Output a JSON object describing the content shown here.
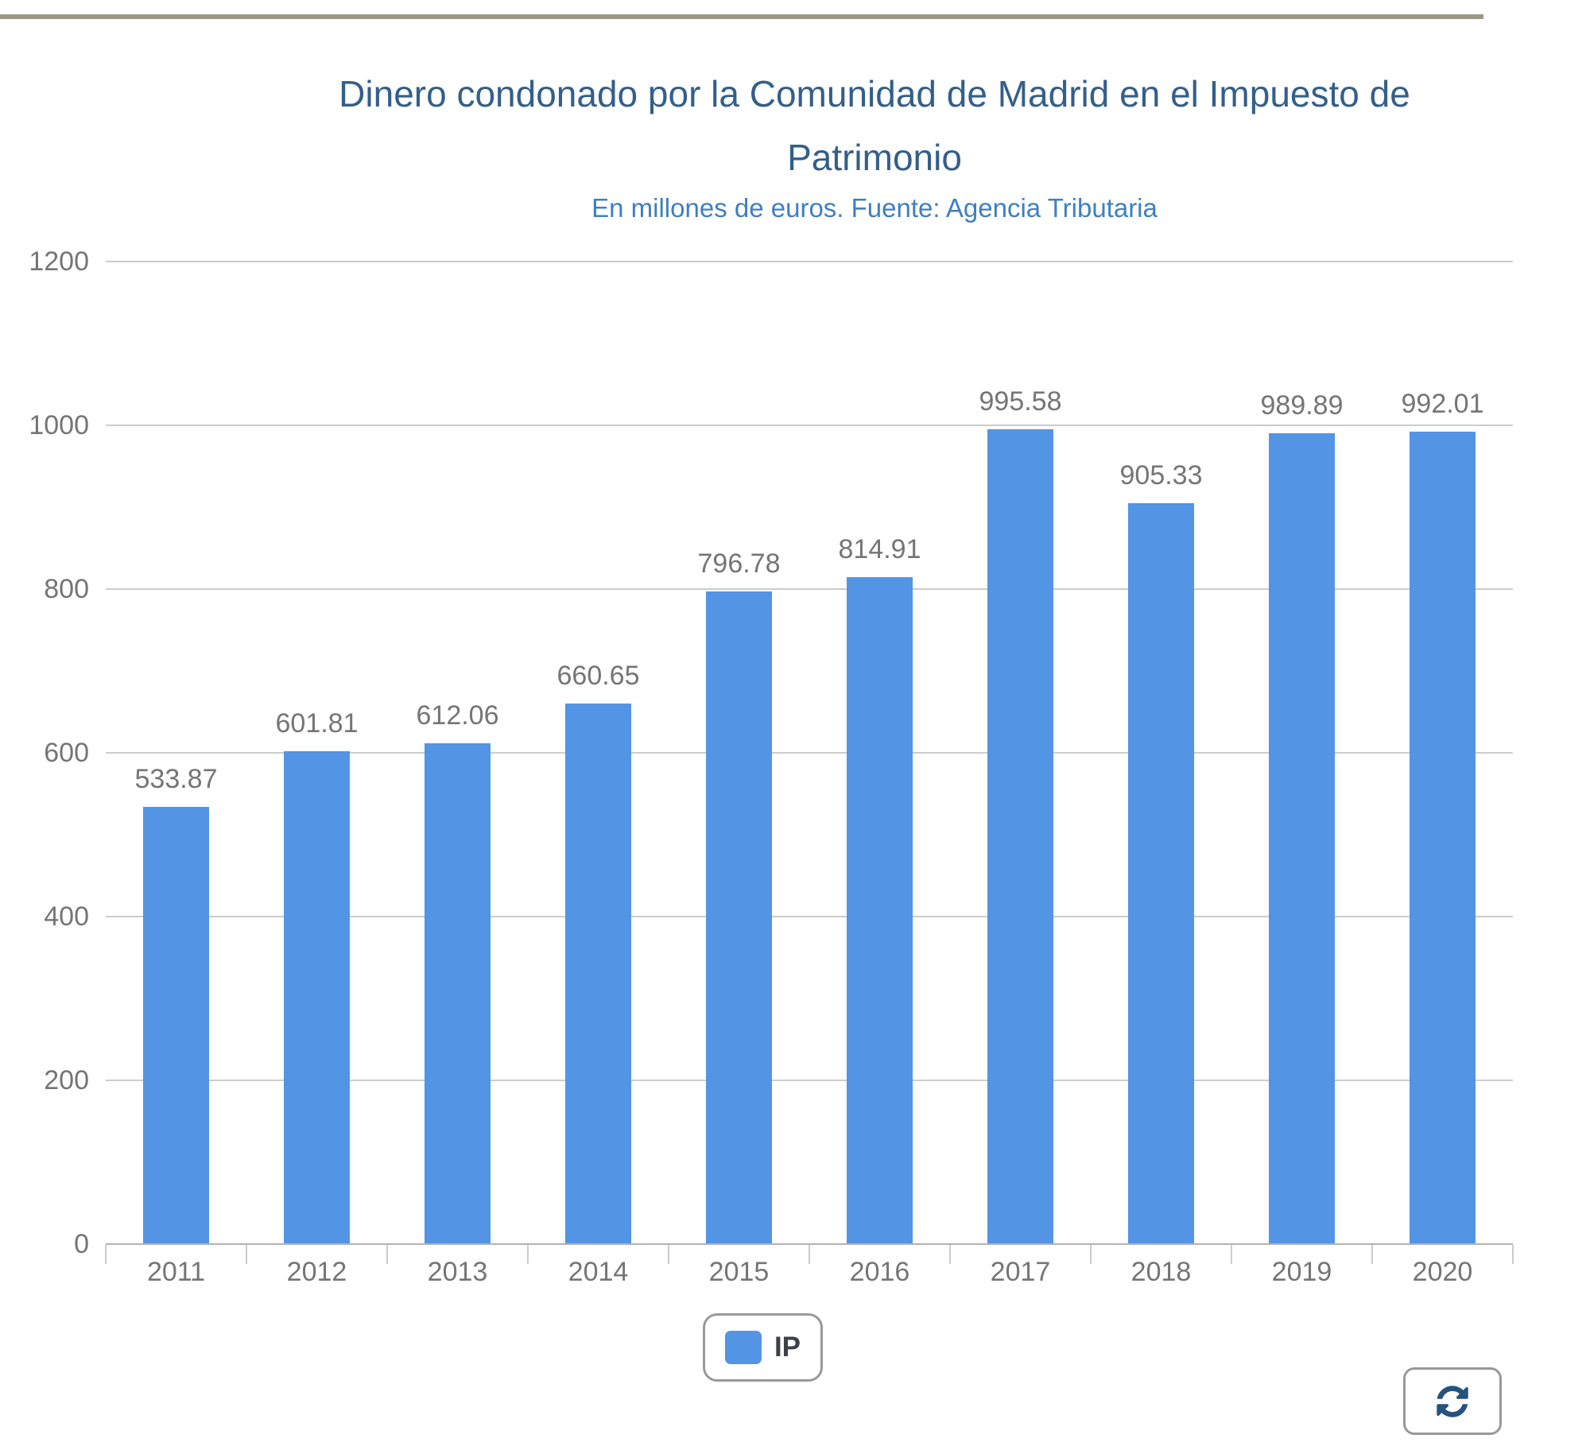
{
  "page": {
    "background": "#ffffff"
  },
  "chart_data": {
    "type": "bar",
    "title": "Dinero condonado por la Comunidad de Madrid en el Impuesto de Patrimonio",
    "subtitle": "En millones de euros. Fuente: Agencia Tributaria",
    "categories": [
      "2011",
      "2012",
      "2013",
      "2014",
      "2015",
      "2016",
      "2017",
      "2018",
      "2019",
      "2020"
    ],
    "series": [
      {
        "name": "IP",
        "values": [
          533.87,
          601.81,
          612.06,
          660.65,
          796.78,
          814.91,
          995.58,
          905.33,
          989.89,
          992.01
        ]
      }
    ],
    "value_labels": [
      "533.87",
      "601.81",
      "612.06",
      "660.65",
      "796.78",
      "814.91",
      "995.58",
      "905.33",
      "989.89",
      "992.01"
    ],
    "xlabel": "",
    "ylabel": "",
    "ylim": [
      0,
      1200
    ],
    "yticks": [
      0,
      200,
      400,
      600,
      800,
      1000,
      1200
    ],
    "grid": true,
    "legend_position": "bottom"
  },
  "legend": {
    "label": "IP"
  },
  "controls": {
    "refresh_icon": "refresh-icon"
  },
  "colors": {
    "bar": "#5494e4",
    "title": "#335f8a",
    "subtitle": "#3f7fbf",
    "label_gray": "#757575",
    "gridline": "#cccccc",
    "baseline": "#b3b3b3",
    "top_rule": "#9a9987",
    "border_gray": "#999999",
    "refresh_icon_blue": "#25527f",
    "legend_text": "#3c4049"
  }
}
